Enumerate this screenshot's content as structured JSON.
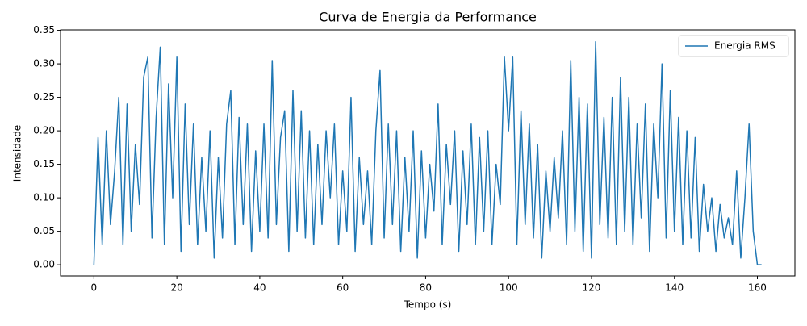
{
  "chart_data": {
    "type": "line",
    "title": "Curva de Energia da Performance",
    "x_label": "Tempo (s)",
    "y_label": "Intensidade",
    "x": [
      0,
      1,
      2,
      3,
      4,
      5,
      6,
      7,
      8,
      9,
      10,
      11,
      12,
      13,
      14,
      15,
      16,
      17,
      18,
      19,
      20,
      21,
      22,
      23,
      24,
      25,
      26,
      27,
      28,
      29,
      30,
      31,
      32,
      33,
      34,
      35,
      36,
      37,
      38,
      39,
      40,
      41,
      42,
      43,
      44,
      45,
      46,
      47,
      48,
      49,
      50,
      51,
      52,
      53,
      54,
      55,
      56,
      57,
      58,
      59,
      60,
      61,
      62,
      63,
      64,
      65,
      66,
      67,
      68,
      69,
      70,
      71,
      72,
      73,
      74,
      75,
      76,
      77,
      78,
      79,
      80,
      81,
      82,
      83,
      84,
      85,
      86,
      87,
      88,
      89,
      90,
      91,
      92,
      93,
      94,
      95,
      96,
      97,
      98,
      99,
      100,
      101,
      102,
      103,
      104,
      105,
      106,
      107,
      108,
      109,
      110,
      111,
      112,
      113,
      114,
      115,
      116,
      117,
      118,
      119,
      120,
      121,
      122,
      123,
      124,
      125,
      126,
      127,
      128,
      129,
      130,
      131,
      132,
      133,
      134,
      135,
      136,
      137,
      138,
      139,
      140,
      141,
      142,
      143,
      144,
      145,
      146,
      147,
      148,
      149,
      150,
      151,
      152,
      153,
      154,
      155,
      156,
      157,
      158,
      159,
      160,
      161
    ],
    "series": [
      {
        "name": "Energia RMS",
        "color": "#1f77b4",
        "values": [
          0.0,
          0.19,
          0.03,
          0.2,
          0.06,
          0.14,
          0.25,
          0.03,
          0.24,
          0.05,
          0.18,
          0.09,
          0.28,
          0.31,
          0.04,
          0.22,
          0.325,
          0.03,
          0.27,
          0.1,
          0.31,
          0.02,
          0.24,
          0.06,
          0.21,
          0.03,
          0.16,
          0.05,
          0.2,
          0.01,
          0.16,
          0.04,
          0.21,
          0.26,
          0.03,
          0.22,
          0.06,
          0.21,
          0.02,
          0.17,
          0.05,
          0.21,
          0.04,
          0.305,
          0.06,
          0.19,
          0.23,
          0.02,
          0.26,
          0.05,
          0.23,
          0.04,
          0.2,
          0.03,
          0.18,
          0.06,
          0.2,
          0.1,
          0.21,
          0.03,
          0.14,
          0.05,
          0.25,
          0.02,
          0.16,
          0.06,
          0.14,
          0.03,
          0.2,
          0.29,
          0.04,
          0.21,
          0.06,
          0.2,
          0.02,
          0.16,
          0.05,
          0.2,
          0.01,
          0.17,
          0.04,
          0.15,
          0.08,
          0.24,
          0.03,
          0.18,
          0.09,
          0.2,
          0.02,
          0.17,
          0.06,
          0.21,
          0.03,
          0.19,
          0.05,
          0.2,
          0.03,
          0.15,
          0.09,
          0.31,
          0.2,
          0.31,
          0.03,
          0.23,
          0.06,
          0.21,
          0.04,
          0.18,
          0.01,
          0.14,
          0.05,
          0.16,
          0.07,
          0.2,
          0.03,
          0.305,
          0.05,
          0.25,
          0.02,
          0.24,
          0.01,
          0.333,
          0.06,
          0.22,
          0.04,
          0.25,
          0.03,
          0.28,
          0.05,
          0.25,
          0.03,
          0.21,
          0.07,
          0.24,
          0.02,
          0.21,
          0.1,
          0.3,
          0.04,
          0.26,
          0.05,
          0.22,
          0.03,
          0.2,
          0.04,
          0.19,
          0.02,
          0.12,
          0.05,
          0.1,
          0.02,
          0.09,
          0.04,
          0.07,
          0.03,
          0.14,
          0.01,
          0.1,
          0.21,
          0.05,
          0,
          0
        ]
      }
    ],
    "xlim": [
      -8.05,
      169.05
    ],
    "xticks": [
      0,
      20,
      40,
      60,
      80,
      100,
      120,
      140,
      160
    ],
    "ylim": [
      -0.0167,
      0.3507
    ],
    "yticks": [
      {
        "value": 0,
        "label": "0.00"
      },
      0.05,
      {
        "value": 0.1,
        "label": "0.10"
      },
      0.15,
      {
        "value": 0.2,
        "label": "0.20"
      },
      0.25,
      {
        "value": 0.3,
        "label": "0.30"
      },
      0.35
    ],
    "legend": "upper right"
  }
}
